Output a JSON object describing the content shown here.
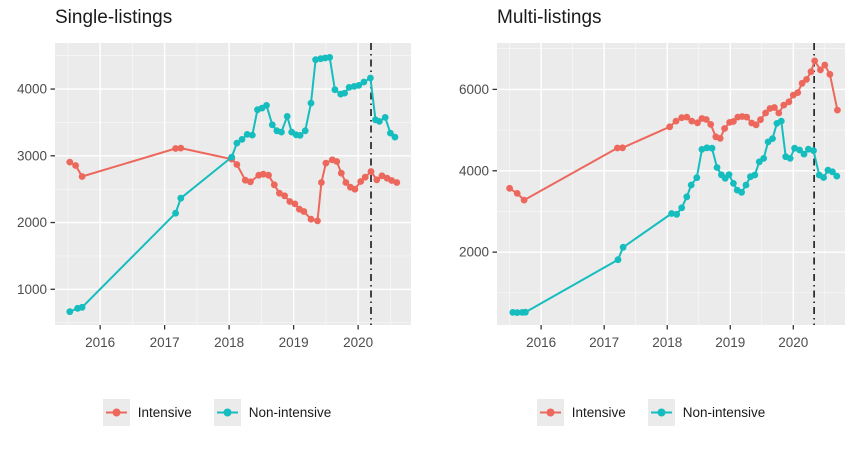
{
  "colors": {
    "intensive": "#EC685D",
    "non_intensive": "#16BDBE",
    "panel_bg": "#EBEBEB",
    "grid_major": "#FFFFFF",
    "grid_minor": "#FFFFFF",
    "axis_text": "#4D4D4D",
    "tick_mark": "#333333",
    "title_text": "#1A1A1A",
    "vline": "#1A1A1A",
    "legend_key_bg": "#EBEBEB"
  },
  "legend": {
    "items": [
      {
        "label": "Intensive",
        "series": "intensive"
      },
      {
        "label": "Non-intensive",
        "series": "non_intensive"
      }
    ]
  },
  "chart_data": [
    {
      "type": "line",
      "title": "Single-listings",
      "xlabel": "",
      "ylabel": "",
      "x_ticks": [
        2016,
        2017,
        2018,
        2019,
        2020
      ],
      "y_ticks": [
        1000,
        2000,
        3000,
        4000
      ],
      "x_domain": [
        2015.3,
        2020.82
      ],
      "y_domain": [
        465,
        4690
      ],
      "grid": true,
      "vline_x": 2020.2,
      "vline_style": "dash-dot",
      "legend_position": "bottom",
      "series": [
        {
          "name": "Intensive",
          "color_key": "intensive",
          "points": [
            [
              2015.53,
              2905
            ],
            [
              2015.62,
              2855
            ],
            [
              2015.72,
              2690
            ],
            [
              2017.17,
              3110
            ],
            [
              2017.25,
              3115
            ],
            [
              2018.04,
              2950
            ],
            [
              2018.12,
              2870
            ],
            [
              2018.25,
              2635
            ],
            [
              2018.33,
              2610
            ],
            [
              2018.46,
              2710
            ],
            [
              2018.53,
              2725
            ],
            [
              2018.61,
              2710
            ],
            [
              2018.7,
              2565
            ],
            [
              2018.78,
              2440
            ],
            [
              2018.86,
              2400
            ],
            [
              2018.94,
              2315
            ],
            [
              2019.02,
              2280
            ],
            [
              2019.09,
              2200
            ],
            [
              2019.16,
              2165
            ],
            [
              2019.27,
              2050
            ],
            [
              2019.37,
              2025
            ],
            [
              2019.43,
              2600
            ],
            [
              2019.5,
              2890
            ],
            [
              2019.6,
              2940
            ],
            [
              2019.67,
              2915
            ],
            [
              2019.74,
              2740
            ],
            [
              2019.81,
              2600
            ],
            [
              2019.88,
              2530
            ],
            [
              2019.95,
              2500
            ],
            [
              2020.04,
              2615
            ],
            [
              2020.11,
              2680
            ],
            [
              2020.2,
              2765
            ],
            [
              2020.29,
              2640
            ],
            [
              2020.37,
              2700
            ],
            [
              2020.45,
              2665
            ],
            [
              2020.52,
              2630
            ],
            [
              2020.6,
              2600
            ]
          ]
        },
        {
          "name": "Non-intensive",
          "color_key": "non_intensive",
          "points": [
            [
              2015.53,
              665
            ],
            [
              2015.65,
              715
            ],
            [
              2015.72,
              730
            ],
            [
              2017.17,
              2140
            ],
            [
              2017.25,
              2365
            ],
            [
              2018.04,
              2980
            ],
            [
              2018.12,
              3190
            ],
            [
              2018.2,
              3245
            ],
            [
              2018.28,
              3320
            ],
            [
              2018.36,
              3310
            ],
            [
              2018.44,
              3690
            ],
            [
              2018.51,
              3715
            ],
            [
              2018.58,
              3755
            ],
            [
              2018.67,
              3465
            ],
            [
              2018.74,
              3375
            ],
            [
              2018.81,
              3355
            ],
            [
              2018.9,
              3590
            ],
            [
              2018.97,
              3355
            ],
            [
              2019.04,
              3315
            ],
            [
              2019.1,
              3305
            ],
            [
              2019.18,
              3375
            ],
            [
              2019.27,
              3790
            ],
            [
              2019.34,
              4440
            ],
            [
              2019.42,
              4455
            ],
            [
              2019.49,
              4465
            ],
            [
              2019.56,
              4475
            ],
            [
              2019.64,
              3990
            ],
            [
              2019.73,
              3925
            ],
            [
              2019.79,
              3940
            ],
            [
              2019.86,
              4025
            ],
            [
              2019.94,
              4040
            ],
            [
              2020.01,
              4055
            ],
            [
              2020.09,
              4105
            ],
            [
              2020.19,
              4165
            ],
            [
              2020.27,
              3540
            ],
            [
              2020.33,
              3515
            ],
            [
              2020.42,
              3575
            ],
            [
              2020.5,
              3340
            ],
            [
              2020.57,
              3280
            ]
          ]
        }
      ]
    },
    {
      "type": "line",
      "title": "Multi-listings",
      "xlabel": "",
      "ylabel": "",
      "x_ticks": [
        2016,
        2017,
        2018,
        2019,
        2020
      ],
      "y_ticks": [
        2000,
        4000,
        6000
      ],
      "x_domain": [
        2015.3,
        2020.82
      ],
      "y_domain": [
        210,
        7140
      ],
      "grid": true,
      "vline_x": 2020.33,
      "vline_style": "dash-dot",
      "legend_position": "bottom",
      "series": [
        {
          "name": "Intensive",
          "color_key": "intensive",
          "points": [
            [
              2015.5,
              3570
            ],
            [
              2015.62,
              3445
            ],
            [
              2015.73,
              3280
            ],
            [
              2017.21,
              4560
            ],
            [
              2017.29,
              4565
            ],
            [
              2018.04,
              5080
            ],
            [
              2018.14,
              5220
            ],
            [
              2018.23,
              5305
            ],
            [
              2018.31,
              5320
            ],
            [
              2018.39,
              5220
            ],
            [
              2018.48,
              5180
            ],
            [
              2018.55,
              5285
            ],
            [
              2018.62,
              5260
            ],
            [
              2018.69,
              5140
            ],
            [
              2018.77,
              4835
            ],
            [
              2018.84,
              4795
            ],
            [
              2018.91,
              5040
            ],
            [
              2018.99,
              5190
            ],
            [
              2019.05,
              5210
            ],
            [
              2019.12,
              5320
            ],
            [
              2019.19,
              5335
            ],
            [
              2019.26,
              5320
            ],
            [
              2019.34,
              5175
            ],
            [
              2019.41,
              5130
            ],
            [
              2019.48,
              5255
            ],
            [
              2019.56,
              5420
            ],
            [
              2019.63,
              5530
            ],
            [
              2019.7,
              5555
            ],
            [
              2019.77,
              5420
            ],
            [
              2019.85,
              5615
            ],
            [
              2019.93,
              5695
            ],
            [
              2020.0,
              5860
            ],
            [
              2020.07,
              5920
            ],
            [
              2020.14,
              6150
            ],
            [
              2020.21,
              6245
            ],
            [
              2020.28,
              6435
            ],
            [
              2020.34,
              6700
            ],
            [
              2020.43,
              6480
            ],
            [
              2020.5,
              6600
            ],
            [
              2020.58,
              6370
            ],
            [
              2020.7,
              5490
            ]
          ]
        },
        {
          "name": "Non-intensive",
          "color_key": "non_intensive",
          "points": [
            [
              2015.55,
              520
            ],
            [
              2015.62,
              515
            ],
            [
              2015.7,
              520
            ],
            [
              2015.75,
              525
            ],
            [
              2017.22,
              1815
            ],
            [
              2017.3,
              2120
            ],
            [
              2018.07,
              2950
            ],
            [
              2018.15,
              2930
            ],
            [
              2018.23,
              3090
            ],
            [
              2018.31,
              3360
            ],
            [
              2018.38,
              3650
            ],
            [
              2018.47,
              3830
            ],
            [
              2018.55,
              4525
            ],
            [
              2018.63,
              4565
            ],
            [
              2018.71,
              4555
            ],
            [
              2018.79,
              4080
            ],
            [
              2018.86,
              3900
            ],
            [
              2018.92,
              3815
            ],
            [
              2018.98,
              3905
            ],
            [
              2019.05,
              3690
            ],
            [
              2019.11,
              3525
            ],
            [
              2019.18,
              3470
            ],
            [
              2019.25,
              3650
            ],
            [
              2019.32,
              3855
            ],
            [
              2019.39,
              3895
            ],
            [
              2019.46,
              4220
            ],
            [
              2019.53,
              4305
            ],
            [
              2019.6,
              4710
            ],
            [
              2019.67,
              4790
            ],
            [
              2019.74,
              5165
            ],
            [
              2019.81,
              5220
            ],
            [
              2019.88,
              4345
            ],
            [
              2019.95,
              4305
            ],
            [
              2020.02,
              4555
            ],
            [
              2020.1,
              4510
            ],
            [
              2020.17,
              4410
            ],
            [
              2020.24,
              4530
            ],
            [
              2020.32,
              4495
            ],
            [
              2020.41,
              3895
            ],
            [
              2020.48,
              3835
            ],
            [
              2020.55,
              4015
            ],
            [
              2020.62,
              3975
            ],
            [
              2020.69,
              3870
            ]
          ]
        }
      ]
    }
  ]
}
